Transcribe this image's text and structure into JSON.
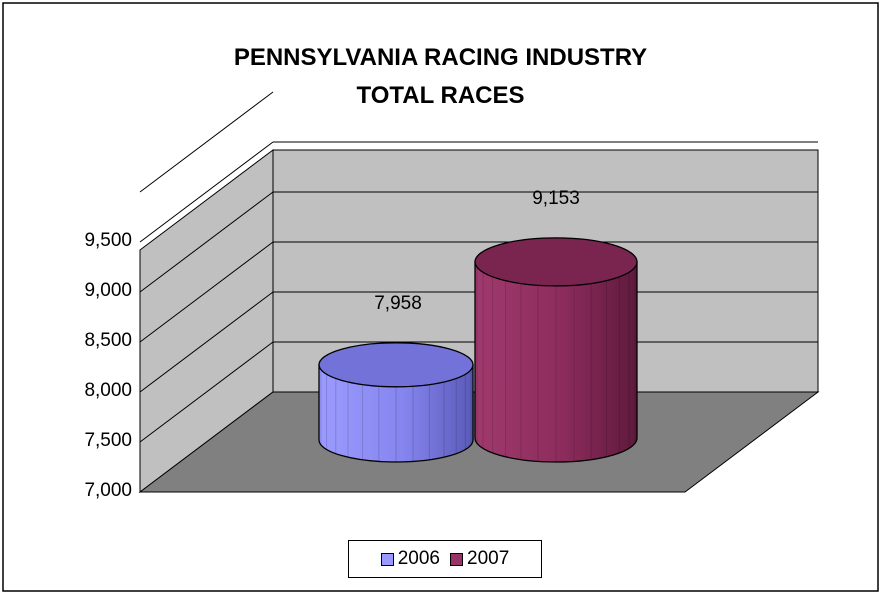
{
  "chart_data": {
    "type": "bar",
    "shape": "cylinder-3d",
    "title": "PENNSYLVANIA RACING INDUSTRY",
    "subtitle": "TOTAL RACES",
    "categories": [
      "2006",
      "2007"
    ],
    "values": [
      7958,
      9153
    ],
    "data_labels": [
      "7,958",
      "9,153"
    ],
    "ylim": [
      7000,
      10000
    ],
    "yticks": [
      "7,000",
      "7,500",
      "8,000",
      "8,500",
      "9,000",
      "9,500"
    ],
    "grid": true,
    "legend": "bottom",
    "colors": [
      "#9999ff",
      "#993366"
    ]
  }
}
